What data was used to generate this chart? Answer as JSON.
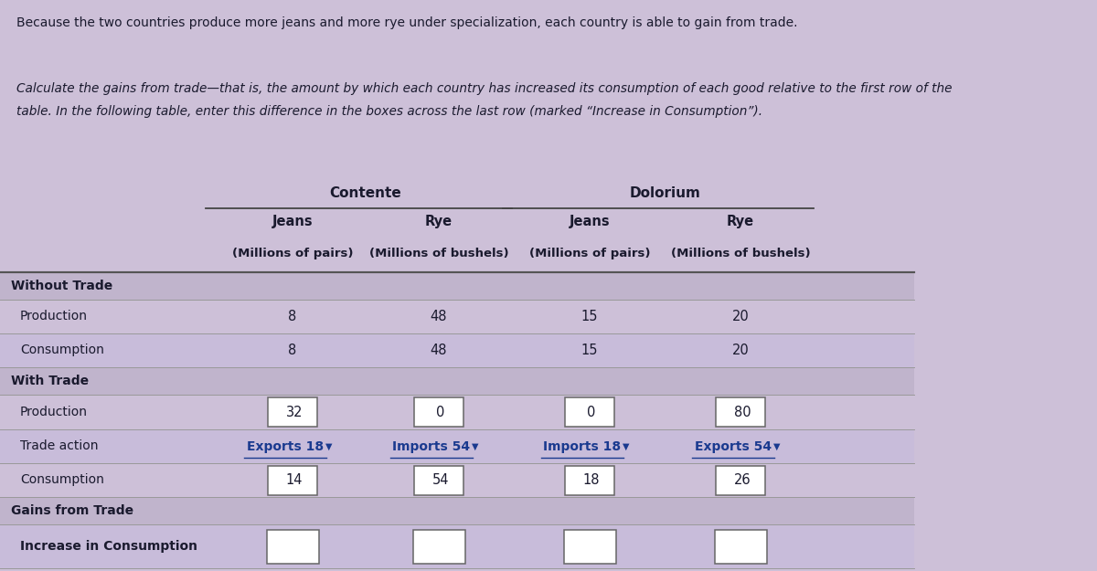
{
  "bg_color": "#cdc0d8",
  "text_color": "#1a1a2e",
  "link_color": "#1a3a8f",
  "top_text1": "Because the two countries produce more jeans and more rye under specialization, each country is able to gain from trade.",
  "top_text2": "Calculate the gains from trade—that is, the amount by which each country has increased its consumption of each good relative to the first row of the",
  "top_text3": "table. In the following table, enter this difference in the boxes across the last row (marked “Increase in Consumption”).",
  "col_countries": [
    "Contente",
    "Dolorium"
  ],
  "col_goods": [
    "Jeans",
    "Rye",
    "Jeans",
    "Rye"
  ],
  "col_units": [
    "(Millions of pairs)",
    "(Millions of bushels)",
    "(Millions of pairs)",
    "(Millions of bushels)"
  ],
  "without_production": [
    "8",
    "48",
    "15",
    "20"
  ],
  "without_consumption": [
    "8",
    "48",
    "15",
    "20"
  ],
  "with_production": [
    "32",
    "0",
    "0",
    "80"
  ],
  "trade_action": [
    "Exports 18",
    "Imports 54",
    "Imports 18",
    "Exports 54"
  ],
  "with_consumption": [
    "14",
    "54",
    "18",
    "26"
  ],
  "row_shade_dark": "#c0b4cc",
  "row_shade_light": "#cdc0d8",
  "row_shade_mid": "#c8bcda"
}
